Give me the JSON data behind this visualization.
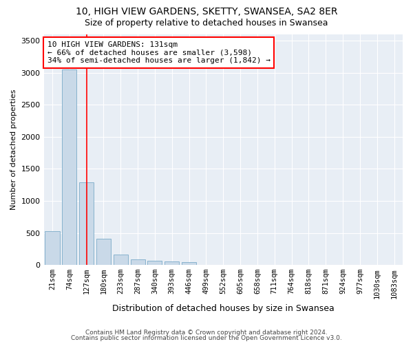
{
  "title1": "10, HIGH VIEW GARDENS, SKETTY, SWANSEA, SA2 8ER",
  "title2": "Size of property relative to detached houses in Swansea",
  "xlabel": "Distribution of detached houses by size in Swansea",
  "ylabel": "Number of detached properties",
  "footer1": "Contains HM Land Registry data © Crown copyright and database right 2024.",
  "footer2": "Contains public sector information licensed under the Open Government Licence v3.0.",
  "annotation_line1": "10 HIGH VIEW GARDENS: 131sqm",
  "annotation_line2": "← 66% of detached houses are smaller (3,598)",
  "annotation_line3": "34% of semi-detached houses are larger (1,842) →",
  "bar_color": "#c9d9e8",
  "bar_edge_color": "#7aaac8",
  "red_line_bin_index": 2,
  "categories": [
    "21sqm",
    "74sqm",
    "127sqm",
    "180sqm",
    "233sqm",
    "287sqm",
    "340sqm",
    "393sqm",
    "446sqm",
    "499sqm",
    "552sqm",
    "605sqm",
    "658sqm",
    "711sqm",
    "764sqm",
    "818sqm",
    "871sqm",
    "924sqm",
    "977sqm",
    "1030sqm",
    "1083sqm"
  ],
  "values": [
    530,
    3050,
    1290,
    405,
    165,
    85,
    60,
    50,
    40,
    0,
    0,
    0,
    0,
    0,
    0,
    0,
    0,
    0,
    0,
    0,
    0
  ],
  "ylim": [
    0,
    3600
  ],
  "yticks": [
    0,
    500,
    1000,
    1500,
    2000,
    2500,
    3000,
    3500
  ],
  "plot_bg_color": "#e8eef5",
  "grid_color": "#ffffff",
  "title_fontsize": 10,
  "subtitle_fontsize": 9,
  "tick_fontsize": 7.5,
  "ylabel_fontsize": 8,
  "xlabel_fontsize": 9,
  "footer_fontsize": 6.5,
  "annotation_fontsize": 8,
  "annotation_box_color": "white",
  "annotation_box_edgecolor": "red"
}
